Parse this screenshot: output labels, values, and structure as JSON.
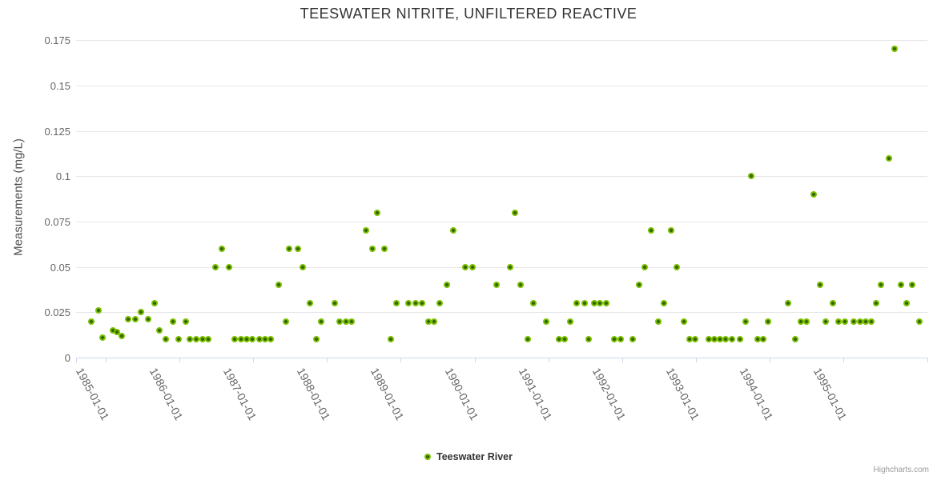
{
  "chart": {
    "title": "TEESWATER NITRITE, UNFILTERED REACTIVE",
    "credits": "Highcharts.com"
  },
  "legend": {
    "series_label": "Teeswater River"
  },
  "colors": {
    "point_outer": "#7bbe00",
    "point_core": "#336600",
    "grid": "#e6e6e6",
    "axis_line": "#ccd6eb",
    "title_text": "#333333",
    "axis_label_text": "#666666",
    "background": "#ffffff"
  },
  "chart_data": {
    "type": "scatter",
    "title": "TEESWATER NITRITE, UNFILTERED REACTIVE",
    "xlabel": "",
    "ylabel": "Measurements (mg/L)",
    "x_tick_labels": [
      "1985-01-01",
      "1986-01-01",
      "1987-01-01",
      "1988-01-01",
      "1989-01-01",
      "1990-01-01",
      "1991-01-01",
      "1992-01-01",
      "1993-01-01",
      "1994-01-01",
      "1995-01-01"
    ],
    "x_tick_years": [
      1985,
      1986,
      1987,
      1988,
      1989,
      1990,
      1991,
      1992,
      1993,
      1994,
      1995
    ],
    "xlim_decimal_years": [
      1984.6,
      1996.14
    ],
    "y_tick_values": [
      0,
      0.025,
      0.05,
      0.075,
      0.1,
      0.125,
      0.15,
      0.175
    ],
    "ylim": [
      0,
      0.175
    ],
    "grid": "horizontal-only",
    "legend_position": "bottom-center",
    "series": [
      {
        "name": "Teeswater River",
        "points": [
          [
            1984.8,
            0.02
          ],
          [
            1984.9,
            0.026
          ],
          [
            1984.96,
            0.011
          ],
          [
            1985.1,
            0.015
          ],
          [
            1985.15,
            0.014
          ],
          [
            1985.22,
            0.012
          ],
          [
            1985.3,
            0.021
          ],
          [
            1985.4,
            0.021
          ],
          [
            1985.48,
            0.025
          ],
          [
            1985.57,
            0.021
          ],
          [
            1985.66,
            0.03
          ],
          [
            1985.73,
            0.015
          ],
          [
            1985.81,
            0.01
          ],
          [
            1985.91,
            0.02
          ],
          [
            1985.99,
            0.01
          ],
          [
            1986.09,
            0.02
          ],
          [
            1986.14,
            0.01
          ],
          [
            1986.23,
            0.01
          ],
          [
            1986.31,
            0.01
          ],
          [
            1986.39,
            0.01
          ],
          [
            1986.49,
            0.05
          ],
          [
            1986.57,
            0.06
          ],
          [
            1986.67,
            0.05
          ],
          [
            1986.75,
            0.01
          ],
          [
            1986.83,
            0.01
          ],
          [
            1986.91,
            0.01
          ],
          [
            1986.99,
            0.01
          ],
          [
            1987.08,
            0.01
          ],
          [
            1987.16,
            0.01
          ],
          [
            1987.24,
            0.01
          ],
          [
            1987.35,
            0.04
          ],
          [
            1987.44,
            0.02
          ],
          [
            1987.49,
            0.06
          ],
          [
            1987.6,
            0.06
          ],
          [
            1987.67,
            0.05
          ],
          [
            1987.77,
            0.03
          ],
          [
            1987.86,
            0.01
          ],
          [
            1987.92,
            0.02
          ],
          [
            1988.1,
            0.03
          ],
          [
            1988.17,
            0.02
          ],
          [
            1988.26,
            0.02
          ],
          [
            1988.33,
            0.02
          ],
          [
            1988.53,
            0.07
          ],
          [
            1988.61,
            0.06
          ],
          [
            1988.68,
            0.08
          ],
          [
            1988.78,
            0.06
          ],
          [
            1988.86,
            0.01
          ],
          [
            1988.94,
            0.03
          ],
          [
            1989.1,
            0.03
          ],
          [
            1989.2,
            0.03
          ],
          [
            1989.29,
            0.03
          ],
          [
            1989.38,
            0.02
          ],
          [
            1989.45,
            0.02
          ],
          [
            1989.53,
            0.03
          ],
          [
            1989.63,
            0.04
          ],
          [
            1989.71,
            0.07
          ],
          [
            1989.88,
            0.05
          ],
          [
            1989.97,
            0.05
          ],
          [
            1990.3,
            0.04
          ],
          [
            1990.48,
            0.05
          ],
          [
            1990.55,
            0.08
          ],
          [
            1990.62,
            0.04
          ],
          [
            1990.72,
            0.01
          ],
          [
            1990.8,
            0.03
          ],
          [
            1990.97,
            0.02
          ],
          [
            1991.15,
            0.01
          ],
          [
            1991.22,
            0.01
          ],
          [
            1991.3,
            0.02
          ],
          [
            1991.38,
            0.03
          ],
          [
            1991.49,
            0.03
          ],
          [
            1991.55,
            0.01
          ],
          [
            1991.62,
            0.03
          ],
          [
            1991.7,
            0.03
          ],
          [
            1991.79,
            0.03
          ],
          [
            1991.89,
            0.01
          ],
          [
            1991.98,
            0.01
          ],
          [
            1992.14,
            0.01
          ],
          [
            1992.23,
            0.04
          ],
          [
            1992.31,
            0.05
          ],
          [
            1992.39,
            0.07
          ],
          [
            1992.49,
            0.02
          ],
          [
            1992.57,
            0.03
          ],
          [
            1992.66,
            0.07
          ],
          [
            1992.74,
            0.05
          ],
          [
            1992.84,
            0.02
          ],
          [
            1992.91,
            0.01
          ],
          [
            1992.99,
            0.01
          ],
          [
            1993.18,
            0.01
          ],
          [
            1993.25,
            0.01
          ],
          [
            1993.33,
            0.01
          ],
          [
            1993.4,
            0.01
          ],
          [
            1993.49,
            0.01
          ],
          [
            1993.6,
            0.01
          ],
          [
            1993.67,
            0.02
          ],
          [
            1993.75,
            0.1
          ],
          [
            1993.84,
            0.01
          ],
          [
            1993.91,
            0.01
          ],
          [
            1993.98,
            0.02
          ],
          [
            1994.25,
            0.03
          ],
          [
            1994.35,
            0.01
          ],
          [
            1994.42,
            0.02
          ],
          [
            1994.5,
            0.02
          ],
          [
            1994.6,
            0.09
          ],
          [
            1994.68,
            0.04
          ],
          [
            1994.76,
            0.02
          ],
          [
            1994.86,
            0.03
          ],
          [
            1994.93,
            0.02
          ],
          [
            1995.02,
            0.02
          ],
          [
            1995.14,
            0.02
          ],
          [
            1995.23,
            0.02
          ],
          [
            1995.3,
            0.02
          ],
          [
            1995.38,
            0.02
          ],
          [
            1995.44,
            0.03
          ],
          [
            1995.51,
            0.04
          ],
          [
            1995.62,
            0.11
          ],
          [
            1995.69,
            0.17
          ],
          [
            1995.78,
            0.04
          ],
          [
            1995.86,
            0.03
          ],
          [
            1995.93,
            0.04
          ],
          [
            1996.03,
            0.02
          ]
        ]
      }
    ]
  }
}
